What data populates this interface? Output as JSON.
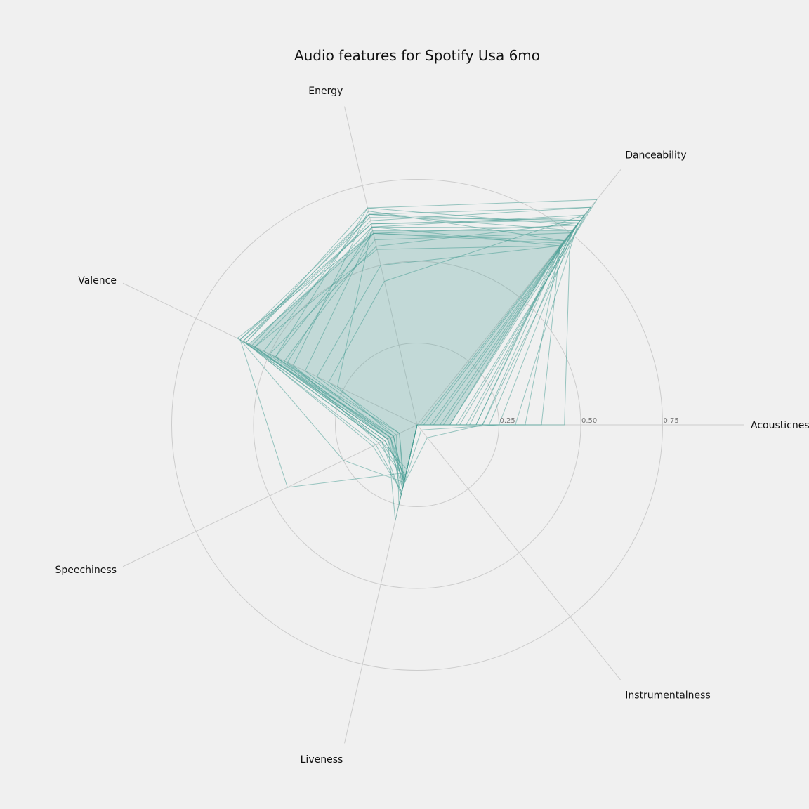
{
  "chart_data": {
    "type": "radar",
    "title": "Audio features for Spotify Usa 6mo",
    "axes": [
      "Acousticness",
      "Danceability",
      "Energy",
      "Valence",
      "Speechiness",
      "Liveness",
      "Instrumentalness"
    ],
    "rlim": [
      0,
      1
    ],
    "rticks": [
      0.25,
      0.5,
      0.75
    ],
    "rtick_labels": [
      "0.25",
      "0.50",
      "0.75"
    ],
    "grid": true,
    "colors": {
      "line": "#4a9e96",
      "fill": "#4a9e96",
      "grid": "#cccccc",
      "background": "#f0f0f0"
    },
    "mean_profile": [
      0.1,
      0.76,
      0.61,
      0.57,
      0.1,
      0.17,
      0.0
    ],
    "series": [
      {
        "values": [
          0.13,
          0.85,
          0.66,
          0.6,
          0.25,
          0.18,
          0.0
        ]
      },
      {
        "values": [
          0.45,
          0.75,
          0.58,
          0.45,
          0.1,
          0.2,
          0.0
        ]
      },
      {
        "values": [
          0.02,
          0.82,
          0.62,
          0.55,
          0.11,
          0.16,
          0.0
        ]
      },
      {
        "values": [
          0.18,
          0.72,
          0.6,
          0.61,
          0.08,
          0.18,
          0.0
        ]
      },
      {
        "values": [
          0.08,
          0.78,
          0.68,
          0.58,
          0.15,
          0.21,
          0.0
        ]
      },
      {
        "values": [
          0.38,
          0.7,
          0.5,
          0.34,
          0.07,
          0.25,
          0.0
        ]
      },
      {
        "values": [
          0.22,
          0.76,
          0.61,
          0.38,
          0.09,
          0.22,
          0.0
        ]
      },
      {
        "values": [
          0.05,
          0.81,
          0.63,
          0.6,
          0.44,
          0.15,
          0.0
        ]
      },
      {
        "values": [
          0.3,
          0.79,
          0.56,
          0.5,
          0.06,
          0.18,
          0.0
        ]
      },
      {
        "values": [
          0.12,
          0.88,
          0.68,
          0.48,
          0.12,
          0.14,
          0.0
        ]
      },
      {
        "values": [
          0.2,
          0.72,
          0.67,
          0.42,
          0.13,
          0.17,
          0.0
        ]
      },
      {
        "values": [
          0.1,
          0.71,
          0.6,
          0.48,
          0.09,
          0.19,
          0.0
        ]
      },
      {
        "values": [
          0.33,
          0.7,
          0.55,
          0.55,
          0.1,
          0.3,
          0.0
        ]
      },
      {
        "values": [
          0.04,
          0.8,
          0.65,
          0.59,
          0.12,
          0.22,
          0.0
        ]
      },
      {
        "values": [
          0.15,
          0.79,
          0.66,
          0.52,
          0.09,
          0.17,
          0.0
        ]
      },
      {
        "values": [
          0.25,
          0.77,
          0.62,
          0.44,
          0.08,
          0.2,
          0.02
        ]
      },
      {
        "values": [
          0.01,
          0.85,
          0.64,
          0.56,
          0.11,
          0.16,
          0.0
        ]
      },
      {
        "values": [
          0.16,
          0.78,
          0.6,
          0.57,
          0.1,
          0.18,
          0.0
        ]
      },
      {
        "values": [
          0.2,
          0.82,
          0.45,
          0.3,
          0.06,
          0.19,
          0.05
        ]
      },
      {
        "values": [
          0.07,
          0.76,
          0.66,
          0.58,
          0.12,
          0.17,
          0.0
        ]
      },
      {
        "values": [
          0.18,
          0.7,
          0.62,
          0.27,
          0.08,
          0.18,
          0.0
        ]
      },
      {
        "values": [
          0.1,
          0.8,
          0.63,
          0.59,
          0.14,
          0.21,
          0.0
        ]
      }
    ]
  }
}
